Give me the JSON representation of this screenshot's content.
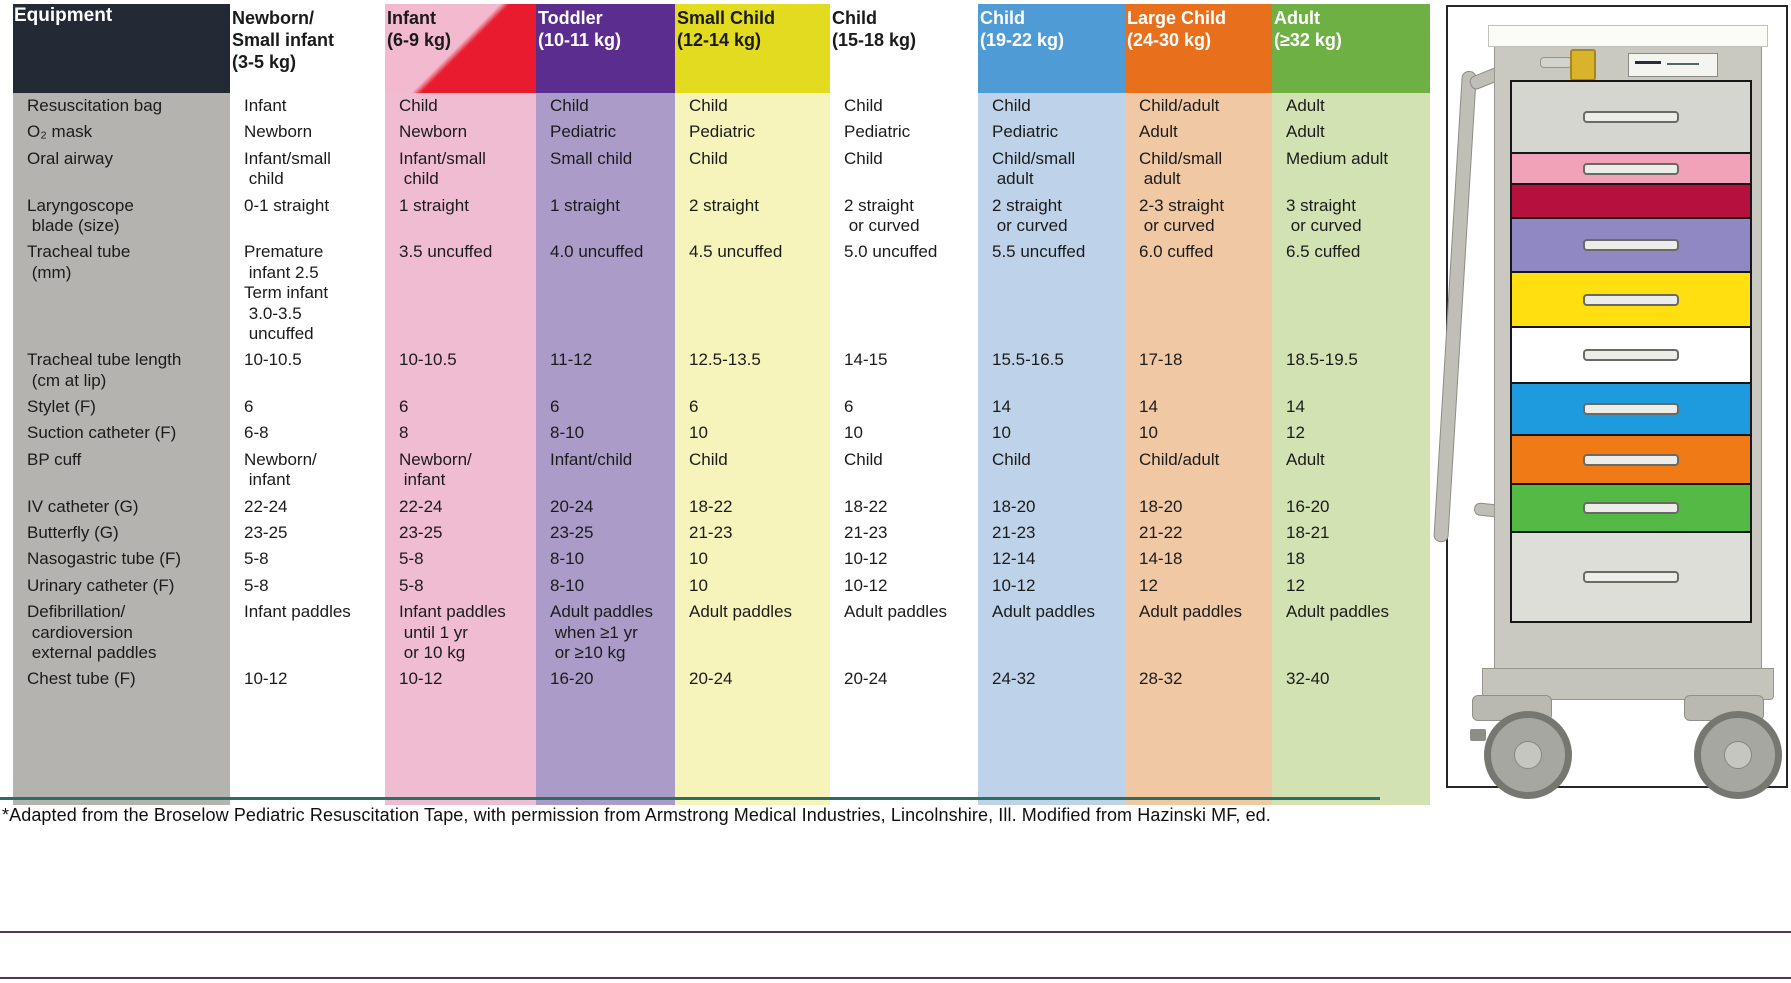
{
  "table": {
    "equipment_label": "Equipment",
    "columns": [
      {
        "name": "Newborn/\nSmall infant",
        "range": "(3-5 kg)",
        "header_bg": "#ffffff",
        "header_color": "#1a1a1a",
        "body_bg": "#ffffff"
      },
      {
        "name": "Infant",
        "range": "(6-9 kg)",
        "header_bg": "linear-gradient(135deg, #f3b9cf 48%, #e81c2e 52%)",
        "header_color": "#1a1a1a",
        "body_bg": "#f0bcd2"
      },
      {
        "name": "Toddler",
        "range": "(10-11 kg)",
        "header_bg": "#5a2d8f",
        "header_color": "#ffffff",
        "body_bg": "#ab9bc8"
      },
      {
        "name": "Small Child",
        "range": "(12-14 kg)",
        "header_bg": "#e3db1f",
        "header_color": "#1a1a1a",
        "body_bg": "#f6f3bb"
      },
      {
        "name": "Child",
        "range": "(15-18 kg)",
        "header_bg": "#ffffff",
        "header_color": "#1a1a1a",
        "body_bg": "#ffffff"
      },
      {
        "name": "Child",
        "range": "(19-22 kg)",
        "header_bg": "#4f9bd5",
        "header_color": "#ffffff",
        "body_bg": "#bed3e9"
      },
      {
        "name": "Large Child",
        "range": "(24-30 kg)",
        "header_bg": "#e8701d",
        "header_color": "#ffffff",
        "body_bg": "#f1c8a4"
      },
      {
        "name": "Adult",
        "range": "(≥32 kg)",
        "header_bg": "#6fb045",
        "header_color": "#ffffff",
        "body_bg": "#d2e2b2"
      }
    ],
    "rows": [
      {
        "label": "Resuscitation bag",
        "cells": [
          "Infant",
          "Child",
          "Child",
          "Child",
          "Child",
          "Child",
          "Child/adult",
          "Adult"
        ]
      },
      {
        "label": "O₂ mask",
        "cells": [
          "Newborn",
          "Newborn",
          "Pediatric",
          "Pediatric",
          "Pediatric",
          "Pediatric",
          "Adult",
          "Adult"
        ]
      },
      {
        "label": "Oral airway",
        "cells": [
          "Infant/small\n child",
          "Infant/small\n child",
          "Small child",
          "Child",
          "Child",
          "Child/small\n adult",
          "Child/small\n adult",
          "Medium adult"
        ]
      },
      {
        "label": "Laryngoscope\n blade (size)",
        "cells": [
          "0-1 straight",
          "1 straight",
          "1 straight",
          "2 straight",
          "2 straight\n or curved",
          "2 straight\n or curved",
          "2-3 straight\n or curved",
          "3 straight\n or curved"
        ]
      },
      {
        "label": "Tracheal tube\n (mm)",
        "cells": [
          "Premature\n infant 2.5\nTerm infant\n 3.0-3.5\n uncuffed",
          "3.5 uncuffed",
          "4.0 uncuffed",
          "4.5 uncuffed",
          "5.0 uncuffed",
          "5.5 uncuffed",
          "6.0 cuffed",
          "6.5 cuffed"
        ]
      },
      {
        "label": "Tracheal tube length\n (cm at lip)",
        "cells": [
          "10-10.5",
          "10-10.5",
          "11-12",
          "12.5-13.5",
          "14-15",
          "15.5-16.5",
          "17-18",
          "18.5-19.5"
        ]
      },
      {
        "label": "Stylet (F)",
        "cells": [
          "6",
          "6",
          "6",
          "6",
          "6",
          "14",
          "14",
          "14"
        ]
      },
      {
        "label": "Suction catheter (F)",
        "cells": [
          "6-8",
          "8",
          "8-10",
          "10",
          "10",
          "10",
          "10",
          "12"
        ]
      },
      {
        "label": "BP cuff",
        "cells": [
          "Newborn/\n infant",
          "Newborn/\n infant",
          "Infant/child",
          "Child",
          "Child",
          "Child",
          "Child/adult",
          "Adult"
        ]
      },
      {
        "label": "IV catheter (G)",
        "cells": [
          "22-24",
          "22-24",
          "20-24",
          "18-22",
          "18-22",
          "18-20",
          "18-20",
          "16-20"
        ]
      },
      {
        "label": "Butterfly (G)",
        "cells": [
          "23-25",
          "23-25",
          "23-25",
          "21-23",
          "21-23",
          "21-23",
          "21-22",
          "18-21"
        ]
      },
      {
        "label": "Nasogastric tube (F)",
        "cells": [
          "5-8",
          "5-8",
          "8-10",
          "10",
          "10-12",
          "12-14",
          "14-18",
          "18"
        ]
      },
      {
        "label": "Urinary catheter (F)",
        "cells": [
          "5-8",
          "5-8",
          "8-10",
          "10",
          "10-12",
          "10-12",
          "12",
          "12"
        ]
      },
      {
        "label": "Defibrillation/\n cardioversion\n external paddles",
        "cells": [
          "Infant paddles",
          "Infant paddles\n until 1 yr\n or 10 kg",
          "Adult paddles\n when ≥1 yr\n or ≥10 kg",
          "Adult paddles",
          "Adult paddles",
          "Adult paddles",
          "Adult paddles",
          "Adult paddles"
        ]
      },
      {
        "label": "Chest tube (F)",
        "cells": [
          "10-12",
          "10-12",
          "16-20",
          "20-24",
          "20-24",
          "24-32",
          "28-32",
          "32-40"
        ]
      }
    ]
  },
  "footnote": "*Adapted from the Broselow Pediatric Resuscitation Tape, with permission from Armstrong Medical Industries, Lincolnshire, Ill. Modified from Hazinski MF, ed.",
  "cart": {
    "drawers": [
      {
        "name": "gray",
        "color": "#d6d6d0",
        "handle": true
      },
      {
        "name": "pink",
        "color": "#f2a2b8",
        "handle": true
      },
      {
        "name": "crimson",
        "color": "#b5103e",
        "handle": false
      },
      {
        "name": "purple",
        "color": "#8f88c2",
        "handle": true
      },
      {
        "name": "yellow",
        "color": "#ffdf0f",
        "handle": true
      },
      {
        "name": "white",
        "color": "#ffffff",
        "handle": true
      },
      {
        "name": "blue",
        "color": "#1e9ade",
        "handle": true
      },
      {
        "name": "orange",
        "color": "#f07b16",
        "handle": true
      },
      {
        "name": "green",
        "color": "#55b945",
        "handle": true
      },
      {
        "name": "light-gray",
        "color": "#deded8",
        "handle": true
      }
    ]
  }
}
